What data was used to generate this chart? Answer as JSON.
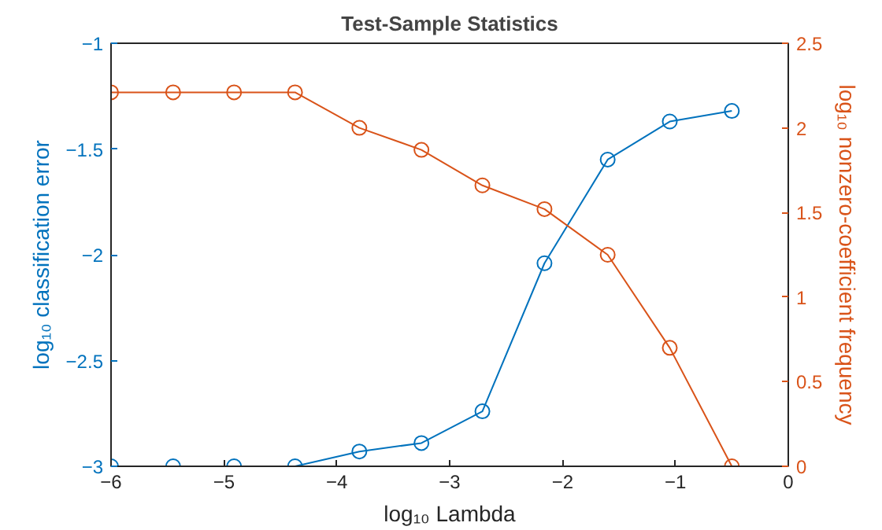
{
  "chart_data": {
    "type": "line",
    "title": "Test-Sample Statistics",
    "xlabel": "log₁₀ Lambda",
    "ylabel": "log₁₀ classification error",
    "y2label": "log₁₀ nonzero-coefficient frequency",
    "x": [
      -6,
      -5.45,
      -4.91,
      -4.37,
      -3.8,
      -3.25,
      -2.71,
      -2.16,
      -1.6,
      -1.05,
      -0.5
    ],
    "series": [
      {
        "color": "#0072bd",
        "values": [
          -3,
          -3,
          -3,
          -3,
          -2.93,
          -2.89,
          -2.74,
          -2.04,
          -1.55,
          -1.37,
          -1.32
        ]
      },
      {
        "color": "#d95319",
        "axis": "y2",
        "values": [
          2.21,
          2.21,
          2.21,
          2.21,
          2.0,
          1.87,
          1.66,
          1.52,
          1.25,
          0.7,
          0
        ]
      }
    ],
    "xlim": [
      -6,
      0
    ],
    "xticks": [
      -6,
      -5,
      -4,
      -3,
      -2,
      -1,
      0
    ],
    "ylim": [
      -3,
      -1
    ],
    "yticks": [
      -3,
      -2.5,
      -2,
      -1.5,
      -1
    ],
    "y2lim": [
      0,
      2.5
    ],
    "y2ticks": [
      0,
      0.5,
      1,
      1.5,
      2,
      2.5
    ],
    "marker": "circle",
    "line_style": "solid",
    "grid": false
  }
}
